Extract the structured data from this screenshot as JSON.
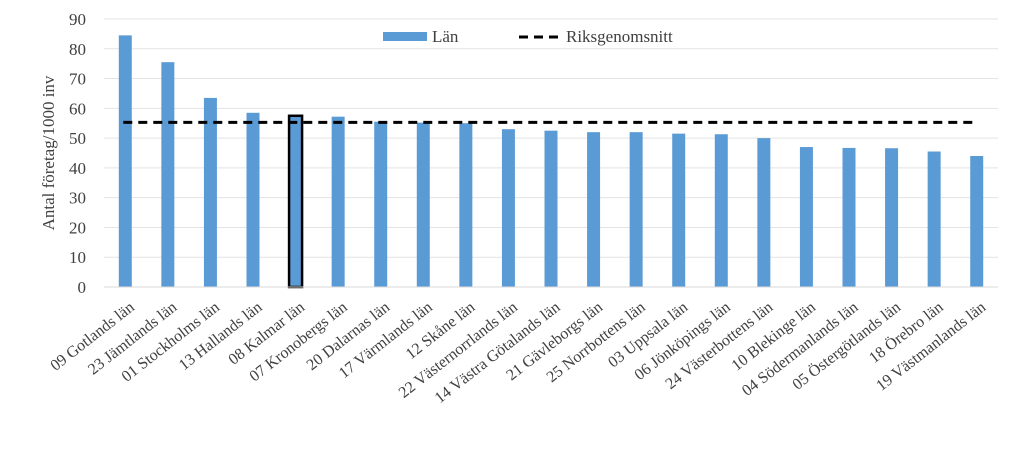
{
  "chart_data": {
    "type": "bar",
    "title": "",
    "xlabel": "",
    "ylabel": "Antal företag/1000 inv",
    "ylim": [
      0,
      90
    ],
    "yticks": [
      0,
      10,
      20,
      30,
      40,
      50,
      60,
      70,
      80,
      90
    ],
    "grid": true,
    "legend_position": "top",
    "categories": [
      "09 Gotlands län",
      "23 Jämtlands län",
      "01 Stockholms län",
      "13 Hallands län",
      "08 Kalmar län",
      "07 Kronobergs län",
      "20 Dalarnas län",
      "17 Värmlands län",
      "12 Skåne län",
      "22 Västernorrlands län",
      "14 Västra Götalands län",
      "21 Gävleborgs län",
      "25 Norrbottens län",
      "03 Uppsala län",
      "06 Jönköpings län",
      "24 Västerbottens län",
      "10 Blekinge län",
      "04 Södermanlands län",
      "05 Östergötlands län",
      "18 Örebro län",
      "19 Västmanlands län"
    ],
    "series": [
      {
        "name": "Län",
        "color": "#5b9bd5",
        "values": [
          84.5,
          75.5,
          63.5,
          58.5,
          57.5,
          57.2,
          55.5,
          55.2,
          55.0,
          53.0,
          52.5,
          52.0,
          52.0,
          51.5,
          51.3,
          50.0,
          47.0,
          46.7,
          46.6,
          45.5,
          44.0
        ]
      }
    ],
    "highlight_category": "08 Kalmar län",
    "reference_line": {
      "name": "Riksgenomsnitt",
      "value": 55.3,
      "style": "dashed",
      "color": "#000000"
    }
  }
}
